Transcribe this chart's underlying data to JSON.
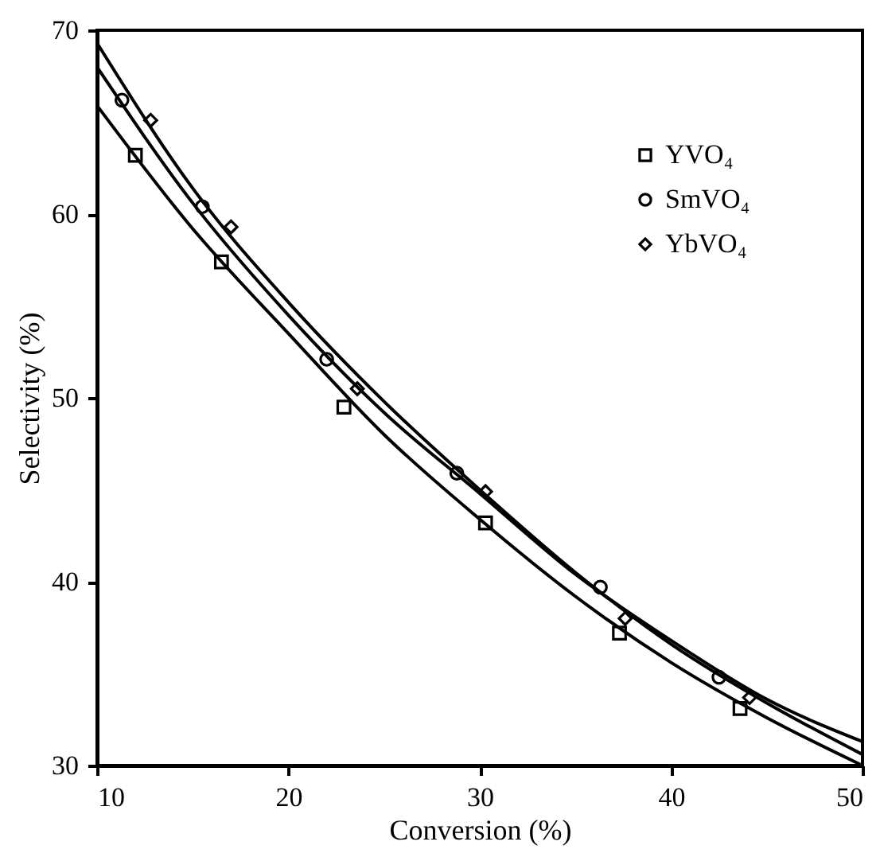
{
  "chart_data": {
    "type": "scatter",
    "xlabel": "Conversion (%)",
    "ylabel": "Selectivity (%)",
    "xlim": [
      10,
      50
    ],
    "ylim": [
      30,
      70
    ],
    "xticks": [
      10,
      20,
      30,
      40,
      50
    ],
    "yticks": [
      30,
      40,
      50,
      60,
      70
    ],
    "grid": false,
    "legend": "top right",
    "series": [
      {
        "name": "YVO₄",
        "color": "#000000",
        "marker": "square",
        "x": [
          12.0,
          16.5,
          22.9,
          30.3,
          37.3,
          43.6
        ],
        "values": [
          63.2,
          57.4,
          49.5,
          43.2,
          37.2,
          33.1
        ]
      },
      {
        "name": "SmVO₄",
        "color": "#000000",
        "marker": "circle",
        "x": [
          11.3,
          15.5,
          22.0,
          28.8,
          36.3,
          42.5
        ],
        "values": [
          66.2,
          60.4,
          52.1,
          45.9,
          39.7,
          34.8
        ]
      },
      {
        "name": "YbVO₄",
        "color": "#000000",
        "marker": "diamond",
        "x": [
          12.8,
          17.0,
          23.6,
          30.3,
          37.6,
          44.1
        ],
        "values": [
          65.1,
          59.3,
          50.5,
          44.9,
          38.0,
          33.7
        ]
      },
      {
        "type": "line",
        "color": "#000000",
        "marker": "none",
        "x": [
          10,
          15,
          20,
          25,
          30,
          35,
          40,
          45,
          50
        ],
        "values": [
          65.9,
          59.2,
          53.5,
          48.0,
          43.4,
          39.2,
          35.6,
          32.6,
          30.0
        ]
      },
      {
        "type": "line",
        "color": "#000000",
        "marker": "none",
        "x": [
          10,
          15,
          20,
          25,
          30,
          35,
          40,
          45,
          50
        ],
        "values": [
          68.0,
          60.6,
          54.5,
          49.2,
          44.8,
          40.4,
          36.8,
          33.6,
          31.3
        ]
      },
      {
        "type": "line",
        "color": "#000000",
        "marker": "none",
        "x": [
          10,
          15,
          20,
          25,
          30,
          35,
          40,
          45,
          50
        ],
        "values": [
          69.3,
          61.4,
          55.2,
          49.8,
          45.0,
          40.5,
          36.6,
          33.4,
          30.6
        ]
      }
    ]
  }
}
